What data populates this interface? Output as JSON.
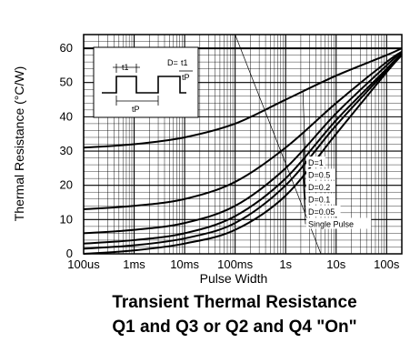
{
  "chart_data": {
    "type": "line",
    "xlabel": "Pulse Width",
    "ylabel": "Thermal Resistance (°C/W)",
    "title_line1": "Transient Thermal Resistance",
    "title_line2": "Q1 and Q3 or Q2 and Q4 \"On\"",
    "x_scale": "log",
    "x_ticks": [
      {
        "label": "100us",
        "value": 0.0001
      },
      {
        "label": "1ms",
        "value": 0.001
      },
      {
        "label": "10ms",
        "value": 0.01
      },
      {
        "label": "100ms",
        "value": 0.1
      },
      {
        "label": "1s",
        "value": 1
      },
      {
        "label": "10s",
        "value": 10
      },
      {
        "label": "100s",
        "value": 100
      }
    ],
    "xlim": [
      0.0001,
      200
    ],
    "ylim": [
      0,
      64
    ],
    "y_ticks": [
      0,
      10,
      20,
      30,
      40,
      50,
      60
    ],
    "grid": true,
    "series": [
      {
        "name": "D=1",
        "x": [
          0.0001,
          0.001,
          0.01,
          0.1,
          1,
          10,
          100,
          200
        ],
        "y": [
          31,
          32,
          34,
          38,
          45,
          52,
          58,
          60
        ]
      },
      {
        "name": "D=0.5",
        "x": [
          0.0001,
          0.001,
          0.01,
          0.1,
          1,
          10,
          100,
          200
        ],
        "y": [
          13,
          14,
          16,
          21,
          31,
          44,
          56,
          59
        ]
      },
      {
        "name": "D=0.2",
        "x": [
          0.0001,
          0.001,
          0.01,
          0.1,
          1,
          10,
          100,
          200
        ],
        "y": [
          6,
          7,
          9,
          14,
          25,
          41,
          55,
          59
        ]
      },
      {
        "name": "D=0.1",
        "x": [
          0.0001,
          0.001,
          0.01,
          0.1,
          1,
          10,
          100,
          200
        ],
        "y": [
          3,
          4,
          6,
          11,
          22,
          39,
          54,
          58.5
        ]
      },
      {
        "name": "D=0.05",
        "x": [
          0.0001,
          0.001,
          0.01,
          0.1,
          1,
          10,
          100,
          200
        ],
        "y": [
          1.5,
          2.5,
          4.5,
          9,
          20,
          37.5,
          53.5,
          58.5
        ]
      },
      {
        "name": "Single Pulse",
        "x": [
          0.0001,
          0.001,
          0.01,
          0.1,
          1,
          10,
          100,
          200
        ],
        "y": [
          0,
          1,
          3,
          7,
          17,
          35,
          53,
          58
        ]
      }
    ],
    "inset": {
      "t1_label": "t1",
      "tp_label": "tP",
      "d_label": "D=",
      "d_num": "t1",
      "d_den": "tP"
    }
  }
}
